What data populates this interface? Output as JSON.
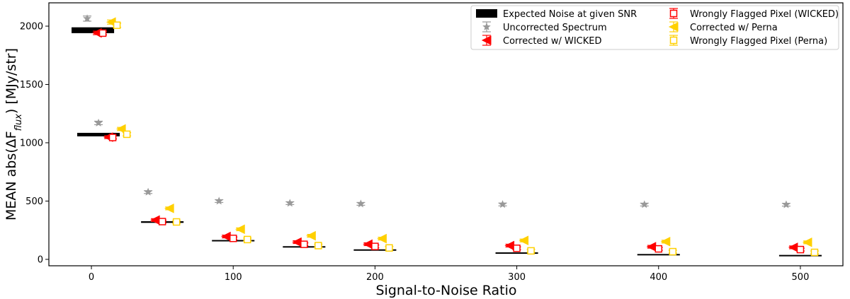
{
  "chart_data": {
    "type": "scatter",
    "title": "",
    "xlabel": "Signal-to-Noise Ratio",
    "ylabel_prefix": "MEAN abs(",
    "ylabel_delta": "ΔF",
    "ylabel_sub": "flux",
    "ylabel_suffix": ") [MJy/str]",
    "xlim": [
      -30,
      530
    ],
    "ylim": [
      -55,
      2200
    ],
    "xticks": [
      0,
      100,
      200,
      300,
      400,
      500
    ],
    "yticks": [
      0,
      500,
      1000,
      1500,
      2000
    ],
    "legend_position": "top-right",
    "colors": {
      "expected": "#000000",
      "uncorrected": "#999999",
      "wicked": "#ff0000",
      "perna": "#ffd000"
    },
    "expected_noise": {
      "name": "Expected Noise at given SNR",
      "half_width": 15,
      "points": [
        {
          "snr": 1,
          "value": 1965,
          "thickness": 50
        },
        {
          "snr": 5,
          "value": 1070,
          "thickness": 30
        },
        {
          "snr": 50,
          "value": 320,
          "thickness": 14
        },
        {
          "snr": 100,
          "value": 160,
          "thickness": 10
        },
        {
          "snr": 150,
          "value": 107,
          "thickness": 8
        },
        {
          "snr": 200,
          "value": 80,
          "thickness": 7
        },
        {
          "snr": 300,
          "value": 54,
          "thickness": 6
        },
        {
          "snr": 400,
          "value": 40,
          "thickness": 6
        },
        {
          "snr": 500,
          "value": 32,
          "thickness": 6
        }
      ]
    },
    "series": [
      {
        "name": "Uncorrected Spectrum",
        "marker": "star",
        "color_key": "uncorrected",
        "points": [
          {
            "x": -3,
            "y": 2065,
            "err": 22
          },
          {
            "x": 5,
            "y": 1170,
            "err": 15
          },
          {
            "x": 40,
            "y": 577,
            "err": 12
          },
          {
            "x": 90,
            "y": 500,
            "err": 10
          },
          {
            "x": 140,
            "y": 482,
            "err": 9
          },
          {
            "x": 190,
            "y": 476,
            "err": 9
          },
          {
            "x": 290,
            "y": 471,
            "err": 8
          },
          {
            "x": 390,
            "y": 470,
            "err": 8
          },
          {
            "x": 490,
            "y": 469,
            "err": 8
          }
        ]
      },
      {
        "name": "Corrected w/ WICKED",
        "marker": "triangle-left",
        "color_key": "wicked",
        "points": [
          {
            "x": 4,
            "y": 1942,
            "err": 15
          },
          {
            "x": 12,
            "y": 1048,
            "err": 12
          },
          {
            "x": 45,
            "y": 337,
            "err": 8
          },
          {
            "x": 95,
            "y": 196,
            "err": 8
          },
          {
            "x": 145,
            "y": 148,
            "err": 7
          },
          {
            "x": 195,
            "y": 130,
            "err": 7
          },
          {
            "x": 295,
            "y": 118,
            "err": 7
          },
          {
            "x": 395,
            "y": 108,
            "err": 7
          },
          {
            "x": 495,
            "y": 103,
            "err": 7
          }
        ]
      },
      {
        "name": "Corrected w/ Perna",
        "marker": "triangle-left",
        "color_key": "perna",
        "points": [
          {
            "x": 14,
            "y": 2035,
            "err": 18
          },
          {
            "x": 21,
            "y": 1118,
            "err": 14
          },
          {
            "x": 55,
            "y": 437,
            "err": 8
          },
          {
            "x": 105,
            "y": 258,
            "err": 8
          },
          {
            "x": 155,
            "y": 202,
            "err": 7
          },
          {
            "x": 205,
            "y": 178,
            "err": 7
          },
          {
            "x": 305,
            "y": 162,
            "err": 7
          },
          {
            "x": 405,
            "y": 152,
            "err": 7
          },
          {
            "x": 505,
            "y": 146,
            "err": 7
          }
        ]
      },
      {
        "name": "Wrongly Flagged Pixel (WICKED)",
        "marker": "square-open",
        "color_key": "wicked",
        "points": [
          {
            "x": 8,
            "y": 1940,
            "err": 15
          },
          {
            "x": 15,
            "y": 1045,
            "err": 12
          },
          {
            "x": 50,
            "y": 324,
            "err": 8
          },
          {
            "x": 100,
            "y": 180,
            "err": 8
          },
          {
            "x": 150,
            "y": 129,
            "err": 7
          },
          {
            "x": 200,
            "y": 111,
            "err": 7
          },
          {
            "x": 300,
            "y": 95,
            "err": 7
          },
          {
            "x": 400,
            "y": 90,
            "err": 7
          },
          {
            "x": 500,
            "y": 84,
            "err": 7
          }
        ]
      },
      {
        "name": "Wrongly Flagged Pixel (Perna)",
        "marker": "square-open",
        "color_key": "perna",
        "points": [
          {
            "x": 18,
            "y": 2008,
            "err": 18
          },
          {
            "x": 25,
            "y": 1073,
            "err": 14
          },
          {
            "x": 60,
            "y": 321,
            "err": 8
          },
          {
            "x": 110,
            "y": 170,
            "err": 8
          },
          {
            "x": 160,
            "y": 118,
            "err": 7
          },
          {
            "x": 210,
            "y": 98,
            "err": 7
          },
          {
            "x": 310,
            "y": 73,
            "err": 7
          },
          {
            "x": 410,
            "y": 66,
            "err": 7
          },
          {
            "x": 510,
            "y": 60,
            "err": 7
          }
        ]
      }
    ]
  }
}
